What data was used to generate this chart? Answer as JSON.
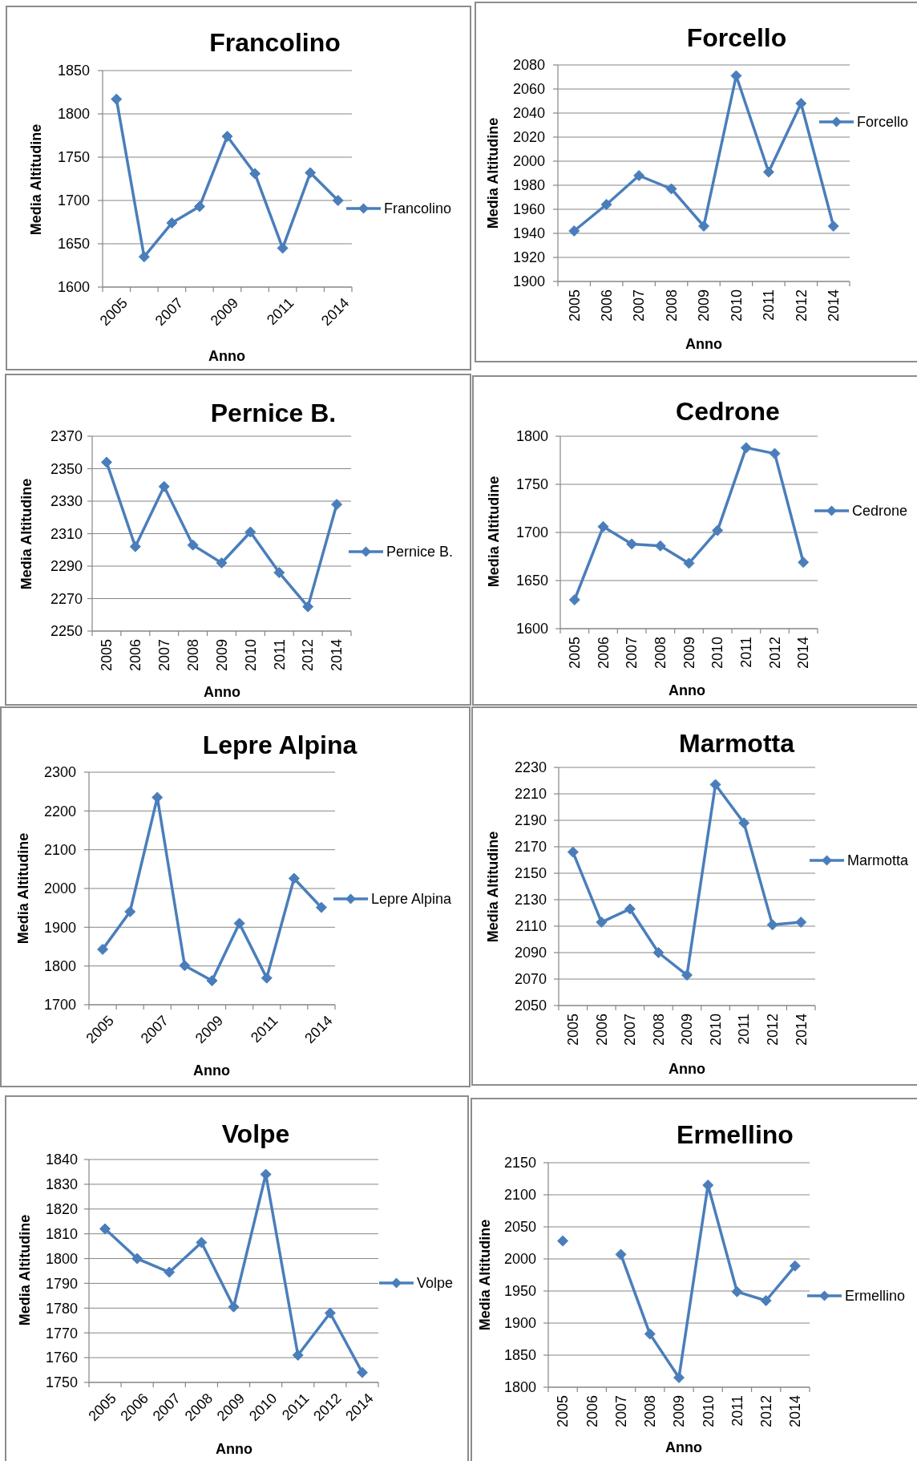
{
  "chart_data": [
    {
      "type": "line",
      "title": "Francolino",
      "xlabel": "Anno",
      "ylabel": "Media Altitudine",
      "categories": [
        "2005",
        null,
        "2007",
        null,
        "2009",
        null,
        "2011",
        null,
        "2014"
      ],
      "series": [
        {
          "name": "Francolino",
          "color": "#4a7ebb",
          "values": [
            1817,
            1635,
            1674,
            1693,
            1774,
            1731,
            1645,
            1732,
            1700
          ]
        }
      ],
      "ylim": [
        1600,
        1850
      ],
      "yticks": [
        1600,
        1650,
        1700,
        1750,
        1800,
        1850
      ],
      "grid": "y",
      "legend": "right",
      "marker": "diamond",
      "line_style": "solid"
    },
    {
      "type": "line",
      "title": "Forcello",
      "xlabel": "Anno",
      "ylabel": "Media Altitudine",
      "categories": [
        "2005",
        "2006",
        "2007",
        "2008",
        "2009",
        "2010",
        "2011",
        "2012",
        "2014"
      ],
      "series": [
        {
          "name": "Forcello",
          "color": "#4a7ebb",
          "values": [
            1942,
            1964,
            1988,
            1977,
            1946,
            2071,
            1991,
            2048,
            1946
          ]
        }
      ],
      "ylim": [
        1900,
        2080
      ],
      "yticks": [
        1900,
        1920,
        1940,
        1960,
        1980,
        2000,
        2020,
        2040,
        2060,
        2080
      ],
      "grid": "y",
      "legend": "right",
      "marker": "diamond",
      "line_style": "solid"
    },
    {
      "type": "line",
      "title": "Pernice B.",
      "xlabel": "Anno",
      "ylabel": "Media Altitudine",
      "categories": [
        "2005",
        "2006",
        "2007",
        "2008",
        "2009",
        "2010",
        "2011",
        "2012",
        "2014"
      ],
      "series": [
        {
          "name": "Pernice B.",
          "color": "#4a7ebb",
          "values": [
            2354,
            2302,
            2339,
            2303,
            2292,
            2311,
            2286,
            2265,
            2328
          ]
        }
      ],
      "ylim": [
        2250,
        2370
      ],
      "yticks": [
        2250,
        2270,
        2290,
        2310,
        2330,
        2350,
        2370
      ],
      "grid": "y",
      "legend": "right",
      "marker": "diamond",
      "line_style": "solid"
    },
    {
      "type": "line",
      "title": "Cedrone",
      "xlabel": "Anno",
      "ylabel": "Media Altitudine",
      "categories": [
        "2005",
        "2006",
        "2007",
        "2008",
        "2009",
        "2010",
        "2011",
        "2012",
        "2014"
      ],
      "series": [
        {
          "name": "Cedrone",
          "color": "#4a7ebb",
          "values": [
            1630,
            1706,
            1688,
            1686,
            1668,
            1702,
            1788,
            1782,
            1669
          ]
        }
      ],
      "ylim": [
        1600,
        1800
      ],
      "yticks": [
        1600,
        1650,
        1700,
        1750,
        1800
      ],
      "grid": "y",
      "legend": "right",
      "marker": "diamond",
      "line_style": "solid"
    },
    {
      "type": "line",
      "title": "Lepre Alpina",
      "xlabel": "Anno",
      "ylabel": "Media Altitudine",
      "categories": [
        "2005",
        null,
        "2007",
        null,
        "2009",
        null,
        "2011",
        null,
        "2014"
      ],
      "series": [
        {
          "name": "Lepre Alpina",
          "color": "#4a7ebb",
          "values": [
            1843,
            1940,
            2235,
            1801,
            1762,
            1910,
            1769,
            2026,
            1951
          ]
        }
      ],
      "ylim": [
        1700,
        2300
      ],
      "yticks": [
        1700,
        1800,
        1900,
        2000,
        2100,
        2200,
        2300
      ],
      "grid": "y",
      "legend": "right",
      "marker": "diamond",
      "line_style": "solid"
    },
    {
      "type": "line",
      "title": "Marmotta",
      "xlabel": "Anno",
      "ylabel": "Media Altitudine",
      "categories": [
        "2005",
        "2006",
        "2007",
        "2008",
        "2009",
        "2010",
        "2011",
        "2012",
        "2014"
      ],
      "series": [
        {
          "name": "Marmotta",
          "color": "#4a7ebb",
          "values": [
            2166,
            2113,
            2123,
            2090,
            2073,
            2217,
            2188,
            2111,
            2113
          ]
        }
      ],
      "ylim": [
        2050,
        2230
      ],
      "yticks": [
        2050,
        2070,
        2090,
        2110,
        2130,
        2150,
        2170,
        2190,
        2210,
        2230
      ],
      "grid": "y",
      "legend": "right",
      "marker": "diamond",
      "line_style": "solid"
    },
    {
      "type": "line",
      "title": "Volpe",
      "xlabel": "Anno",
      "ylabel": "Media Altitudine",
      "categories": [
        "2005",
        "2006",
        "2007",
        "2008",
        "2009",
        "2010",
        "2011",
        "2012",
        "2014"
      ],
      "series": [
        {
          "name": "Volpe",
          "color": "#4a7ebb",
          "values": [
            1812,
            1800,
            1794.5,
            1806.5,
            1780.5,
            1834,
            1761,
            1778,
            1754
          ]
        }
      ],
      "ylim": [
        1750,
        1840
      ],
      "yticks": [
        1750,
        1760,
        1770,
        1780,
        1790,
        1800,
        1810,
        1820,
        1830,
        1840
      ],
      "grid": "y",
      "legend": "right",
      "marker": "diamond",
      "line_style": "solid"
    },
    {
      "type": "line",
      "title": "Ermellino",
      "xlabel": "Anno",
      "ylabel": "Media Altitudine",
      "categories": [
        "2005",
        "2006",
        "2007",
        "2008",
        "2009",
        "2010",
        "2011",
        "2012",
        "2014"
      ],
      "series": [
        {
          "name": "Ermellino",
          "color": "#4a7ebb",
          "values": [
            2028,
            null,
            2007,
            1883,
            1815,
            2115,
            1949,
            1935,
            1989
          ]
        }
      ],
      "ylim": [
        1800,
        2150
      ],
      "yticks": [
        1800,
        1850,
        1900,
        1950,
        2000,
        2050,
        2100,
        2150
      ],
      "grid": "y",
      "legend": "right",
      "marker": "diamond",
      "line_style": "solid"
    }
  ]
}
